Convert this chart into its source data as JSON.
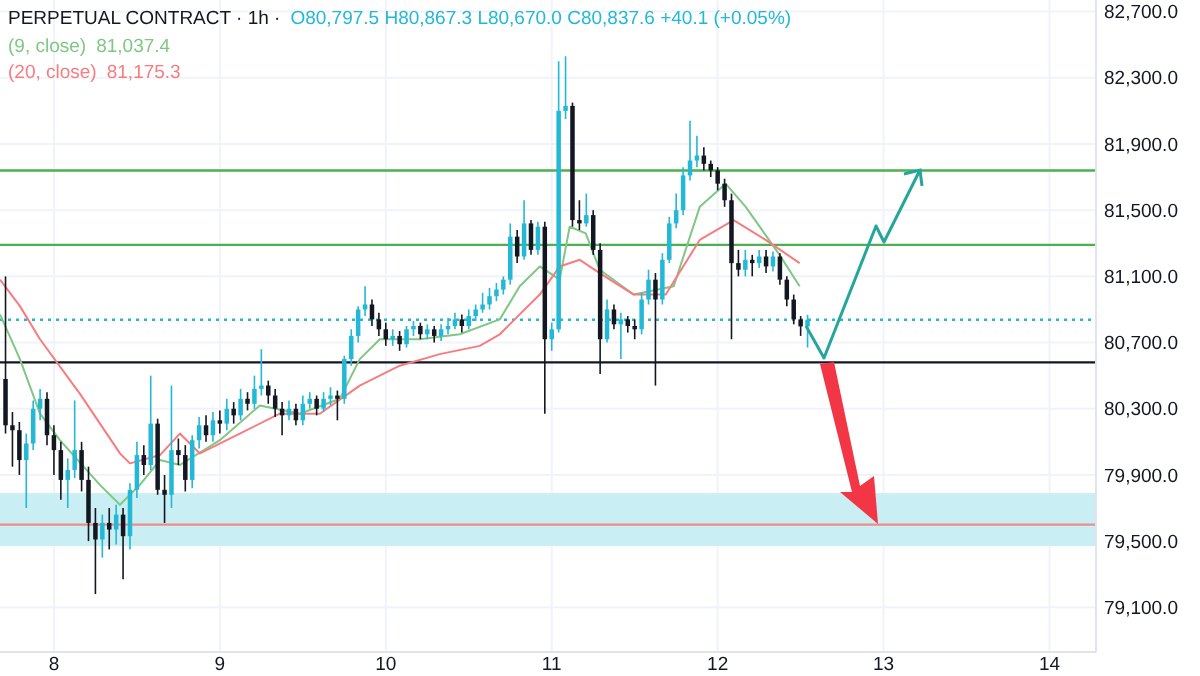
{
  "chart_data": {
    "type": "candlestick",
    "title": "PERPETUAL CONTRACT · 1h ·",
    "annotations": [
      "O80,797.5 H80,867.3 L80,670.0 C80,837.6 +40.1 (+0.05%)",
      "81,037.4",
      "81,175.3"
    ],
    "colors": [
      "#131722",
      "#131722",
      "#131722",
      "#22b8d6",
      "#22b8d6",
      "#22b8d6",
      "#131722",
      "#131722",
      "#131722",
      "#22b8d6",
      "#22b8d6",
      "#131722",
      "#131722",
      "#131722",
      "#22b8d6",
      "#131722",
      "#22b8d6",
      "#131722",
      "#22b8d6",
      "#22b8d6",
      "#131722",
      "#22b8d6",
      "#131722",
      "#131722",
      "#22b8d6",
      "#131722",
      "#131722",
      "#22b8d6",
      "#22b8d6",
      "#131722",
      "#22b8d6",
      "#131722",
      "#22b8d6",
      "#131722",
      "#22b8d6",
      "#131722",
      "#22b8d6",
      "#22b8d6",
      "#131722",
      "#131722",
      "#131722",
      "#22b8d6",
      "#131722",
      "#22b8d6",
      "#22b8d6",
      "#131722",
      "#22b8d6",
      "#22b8d6",
      "#131722",
      "#22b8d6",
      "#22b8d6",
      "#22b8d6",
      "#22b8d6",
      "#131722",
      "#131722",
      "#131722",
      "#22b8d6",
      "#131722",
      "#22b8d6",
      "#22b8d6",
      "#131722",
      "#22b8d6",
      "#131722",
      "#22b8d6",
      "#22b8d6",
      "#22b8d6",
      "#131722",
      "#22b8d6",
      "#22b8d6",
      "#22b8d6",
      "#22b8d6",
      "#22b8d6",
      "#22b8d6",
      "#22b8d6",
      "#131722",
      "#22b8d6",
      "#131722",
      "#22b8d6",
      "#131722",
      "#22b8d6",
      "#22b8d6",
      "#22b8d6",
      "#131722",
      "#131722",
      "#22b8d6",
      "#131722",
      "#131722",
      "#22b8d6",
      "#131722",
      "#22b8d6",
      "#131722",
      "#131722",
      "#22b8d6",
      "#22b8d6",
      "#131722",
      "#22b8d6",
      "#22b8d6",
      "#22b8d6",
      "#22b8d6",
      "#22b8d6",
      "#22b8d6",
      "#131722",
      "#131722",
      "#131722",
      "#131722",
      "#131722",
      "#131722",
      "#22b8d6",
      "#131722",
      "#22b8d6",
      "#131722",
      "#22b8d6",
      "#131722",
      "#131722",
      "#131722",
      "#131722",
      "#22b8d6"
    ],
    "x": [
      7.7083,
      7.75,
      7.7917,
      7.8333,
      7.875,
      7.9167,
      7.9583,
      8,
      8.0417,
      8.0833,
      8.125,
      8.1667,
      8.2083,
      8.25,
      8.2917,
      8.3333,
      8.375,
      8.4167,
      8.4583,
      8.5,
      8.5417,
      8.5833,
      8.625,
      8.6667,
      8.7083,
      8.75,
      8.7917,
      8.8333,
      8.875,
      8.9167,
      8.9583,
      9,
      9.0417,
      9.0833,
      9.125,
      9.1667,
      9.2083,
      9.25,
      9.2917,
      9.3333,
      9.375,
      9.4167,
      9.4583,
      9.5,
      9.5417,
      9.5833,
      9.625,
      9.6667,
      9.7083,
      9.75,
      9.7917,
      9.8333,
      9.875,
      9.9167,
      9.9583,
      10,
      10.0417,
      10.0833,
      10.125,
      10.1667,
      10.2083,
      10.25,
      10.2917,
      10.3333,
      10.375,
      10.4167,
      10.4583,
      10.5,
      10.5417,
      10.5833,
      10.625,
      10.6667,
      10.7083,
      10.75,
      10.7917,
      10.8333,
      10.875,
      10.9167,
      10.9583,
      11,
      11.0417,
      11.0833,
      11.125,
      11.1667,
      11.2083,
      11.25,
      11.2917,
      11.3333,
      11.375,
      11.4167,
      11.4583,
      11.5,
      11.5417,
      11.5833,
      11.625,
      11.6667,
      11.7083,
      11.75,
      11.7917,
      11.8333,
      11.875,
      11.9167,
      11.9583,
      12,
      12.0417,
      12.0833,
      12.125,
      12.1667,
      12.2083,
      12.25,
      12.2917,
      12.3333,
      12.375,
      12.4167,
      12.4583,
      12.5,
      12.5417
    ],
    "ohlc": [
      [
        80480,
        81100,
        80150,
        80200
      ],
      [
        80200,
        80280,
        79950,
        80170
      ],
      [
        80170,
        80220,
        79900,
        79990
      ],
      [
        79990,
        80150,
        79700,
        80090
      ],
      [
        80090,
        80350,
        80050,
        80300
      ],
      [
        80300,
        80420,
        80230,
        80360
      ],
      [
        80360,
        80400,
        80080,
        80140
      ],
      [
        80140,
        80200,
        79900,
        80050
      ],
      [
        80050,
        80100,
        79750,
        79870
      ],
      [
        79870,
        80000,
        79700,
        79930
      ],
      [
        79930,
        80350,
        79880,
        80050
      ],
      [
        80050,
        80100,
        79800,
        79870
      ],
      [
        79870,
        79950,
        79500,
        79610
      ],
      [
        79610,
        79700,
        79180,
        79510
      ],
      [
        79510,
        79660,
        79400,
        79610
      ],
      [
        79610,
        79700,
        79450,
        79570
      ],
      [
        79570,
        79720,
        79480,
        79660
      ],
      [
        79660,
        79700,
        79270,
        79530
      ],
      [
        79530,
        79850,
        79450,
        79810
      ],
      [
        79810,
        80100,
        79760,
        80020
      ],
      [
        80020,
        80080,
        79900,
        79960
      ],
      [
        79960,
        80500,
        79930,
        80210
      ],
      [
        80210,
        80240,
        79780,
        79810
      ],
      [
        79810,
        79900,
        79610,
        79780
      ],
      [
        79780,
        80440,
        79700,
        80050
      ],
      [
        80050,
        80120,
        79960,
        80020
      ],
      [
        80020,
        80080,
        79800,
        79870
      ],
      [
        79870,
        80140,
        79820,
        80110
      ],
      [
        80110,
        80250,
        80060,
        80200
      ],
      [
        80200,
        80260,
        80100,
        80140
      ],
      [
        80140,
        80280,
        80100,
        80230
      ],
      [
        80230,
        80290,
        80150,
        80210
      ],
      [
        80210,
        80360,
        80170,
        80300
      ],
      [
        80300,
        80340,
        80210,
        80260
      ],
      [
        80260,
        80420,
        80230,
        80360
      ],
      [
        80360,
        80400,
        80290,
        80330
      ],
      [
        80330,
        80500,
        80300,
        80420
      ],
      [
        80420,
        80660,
        80380,
        80440
      ],
      [
        80440,
        80470,
        80330,
        80380
      ],
      [
        80380,
        80420,
        80250,
        80300
      ],
      [
        80300,
        80340,
        80140,
        80260
      ],
      [
        80260,
        80350,
        80230,
        80300
      ],
      [
        80300,
        80330,
        80200,
        80230
      ],
      [
        80230,
        80380,
        80200,
        80330
      ],
      [
        80330,
        80400,
        80300,
        80360
      ],
      [
        80360,
        80380,
        80260,
        80300
      ],
      [
        80300,
        80400,
        80280,
        80360
      ],
      [
        80360,
        80430,
        80320,
        80380
      ],
      [
        80380,
        80410,
        80230,
        80360
      ],
      [
        80360,
        80620,
        80330,
        80600
      ],
      [
        80600,
        80780,
        80560,
        80740
      ],
      [
        80740,
        80920,
        80700,
        80900
      ],
      [
        80900,
        81040,
        80860,
        80930
      ],
      [
        80930,
        80960,
        80800,
        80840
      ],
      [
        80840,
        80880,
        80740,
        80780
      ],
      [
        80780,
        80820,
        80680,
        80720
      ],
      [
        80720,
        80780,
        80680,
        80740
      ],
      [
        80740,
        80770,
        80650,
        80690
      ],
      [
        80690,
        80800,
        80670,
        80780
      ],
      [
        80780,
        80830,
        80740,
        80800
      ],
      [
        80800,
        80820,
        80720,
        80750
      ],
      [
        80750,
        80810,
        80720,
        80780
      ],
      [
        80780,
        80800,
        80700,
        80740
      ],
      [
        80740,
        80810,
        80710,
        80780
      ],
      [
        80780,
        80850,
        80750,
        80800
      ],
      [
        80800,
        80880,
        80780,
        80840
      ],
      [
        80840,
        80870,
        80760,
        80800
      ],
      [
        80800,
        80900,
        80780,
        80860
      ],
      [
        80860,
        80930,
        80830,
        80900
      ],
      [
        80900,
        81000,
        80880,
        80930
      ],
      [
        80930,
        81030,
        80900,
        80980
      ],
      [
        80980,
        81060,
        80950,
        81020
      ],
      [
        81020,
        81100,
        80990,
        81080
      ],
      [
        81080,
        81420,
        81050,
        81340
      ],
      [
        81340,
        81380,
        81180,
        81220
      ],
      [
        81220,
        81560,
        81200,
        81420
      ],
      [
        81420,
        81440,
        81230,
        81260
      ],
      [
        81260,
        81430,
        81230,
        81400
      ],
      [
        81400,
        81430,
        80270,
        80720
      ],
      [
        80720,
        80820,
        80650,
        80780
      ],
      [
        80780,
        82400,
        80760,
        82100
      ],
      [
        82100,
        82430,
        82050,
        82130
      ],
      [
        82130,
        82150,
        81400,
        81440
      ],
      [
        81440,
        81560,
        81380,
        81420
      ],
      [
        81420,
        81600,
        81400,
        81470
      ],
      [
        81470,
        81500,
        81230,
        81260
      ],
      [
        81260,
        81300,
        80510,
        80720
      ],
      [
        80720,
        80960,
        80700,
        80900
      ],
      [
        80900,
        80930,
        80780,
        80810
      ],
      [
        80810,
        80880,
        80600,
        80840
      ],
      [
        80840,
        80860,
        80760,
        80800
      ],
      [
        80800,
        80840,
        80720,
        80780
      ],
      [
        80780,
        81000,
        80750,
        80960
      ],
      [
        80960,
        81140,
        80930,
        81080
      ],
      [
        81080,
        81120,
        80440,
        80960
      ],
      [
        80960,
        81240,
        80930,
        81200
      ],
      [
        81200,
        81460,
        81180,
        81420
      ],
      [
        81420,
        81600,
        81390,
        81500
      ],
      [
        81500,
        81760,
        81470,
        81710
      ],
      [
        81710,
        82040,
        81680,
        81800
      ],
      [
        81800,
        81950,
        81760,
        81830
      ],
      [
        81830,
        81880,
        81740,
        81780
      ],
      [
        81780,
        81800,
        81700,
        81740
      ],
      [
        81740,
        81760,
        81620,
        81660
      ],
      [
        81660,
        81690,
        81520,
        81560
      ],
      [
        81560,
        81600,
        80720,
        81180
      ],
      [
        81180,
        81260,
        81100,
        81140
      ],
      [
        81140,
        81260,
        81100,
        81200
      ],
      [
        81200,
        81230,
        81100,
        81180
      ],
      [
        81180,
        81260,
        81150,
        81220
      ],
      [
        81220,
        81260,
        81120,
        81160
      ],
      [
        81160,
        81250,
        81130,
        81220
      ],
      [
        81220,
        81240,
        81050,
        81080
      ],
      [
        81080,
        81100,
        80920,
        80960
      ],
      [
        80960,
        80990,
        80810,
        80840
      ],
      [
        80840,
        80860,
        80740,
        80797.5
      ],
      [
        80797.5,
        80867.3,
        80670.0,
        80837.6
      ]
    ],
    "series": [
      {
        "name": "(9, close)",
        "type": "line",
        "color": "#81c784",
        "x": [
          7.675,
          7.795,
          7.916,
          8.036,
          8.277,
          8.398,
          8.518,
          8.639,
          8.759,
          9.0,
          9.241,
          9.482,
          9.723,
          9.843,
          9.964,
          10.205,
          10.446,
          10.687,
          10.807,
          10.928,
          11.048,
          11.108,
          11.205,
          11.289,
          11.494,
          11.735,
          11.892,
          12.048,
          12.169,
          12.373,
          12.494
        ],
        "values": [
          80870,
          80600,
          80270,
          80110,
          79840,
          79720,
          79840,
          79990,
          79960,
          80110,
          80320,
          80270,
          80360,
          80600,
          80720,
          80720,
          80750,
          80840,
          81040,
          81160,
          81080,
          81400,
          81360,
          81140,
          80990,
          81040,
          81520,
          81660,
          81520,
          81230,
          81040
        ]
      },
      {
        "name": "(20, close)",
        "type": "line",
        "color": "#f77c80",
        "x": [
          7.675,
          7.795,
          7.916,
          8.157,
          8.398,
          8.458,
          8.639,
          8.759,
          8.88,
          9.12,
          9.361,
          9.602,
          9.843,
          10.084,
          10.325,
          10.566,
          10.687,
          10.807,
          10.928,
          11.048,
          11.169,
          11.289,
          11.494,
          11.687,
          11.892,
          12.096,
          12.289,
          12.494
        ],
        "values": [
          81080,
          80920,
          80720,
          80390,
          80030,
          79970,
          80020,
          80150,
          80030,
          80150,
          80270,
          80270,
          80440,
          80560,
          80630,
          80680,
          80750,
          80870,
          80990,
          81160,
          81200,
          81120,
          80990,
          80990,
          81320,
          81440,
          81320,
          81180
        ]
      }
    ],
    "xlim": [
      7.675,
      14.28
    ],
    "xticks": [
      8,
      9,
      10,
      11,
      12,
      13,
      14
    ],
    "ylim": [
      78830,
      82770
    ],
    "yticks": [
      {
        "value": 79100,
        "label": "79,100.0"
      },
      {
        "value": 79500,
        "label": "79,500.0"
      },
      {
        "value": 79900,
        "label": "79,900.0"
      },
      {
        "value": 80300,
        "label": "80,300.0"
      },
      {
        "value": 80700,
        "label": "80,700.0"
      },
      {
        "value": 81100,
        "label": "81,100.0"
      },
      {
        "value": 81500,
        "label": "81,500.0"
      },
      {
        "value": 81900,
        "label": "81,900.0"
      },
      {
        "value": 82300,
        "label": "82,300.0"
      },
      {
        "value": 82700,
        "label": "82,700.0"
      }
    ],
    "grid": true,
    "legend": "top left",
    "ref_lines": [
      {
        "axis": "y",
        "value": 80580,
        "color": "#131722",
        "line_style": "solid"
      },
      {
        "axis": "y",
        "value": 81740,
        "color": "#4caf50",
        "line_style": "solid"
      },
      {
        "axis": "y",
        "value": 81290,
        "color": "#4caf50",
        "line_style": "solid"
      },
      {
        "axis": "y",
        "value": 79600,
        "color": "#f28b8b",
        "line_style": "solid"
      },
      {
        "axis": "y",
        "value": 80837.6,
        "color": "#22b8d6",
        "line_style": "dotted"
      }
    ],
    "bands": [
      {
        "axis": "y",
        "from": 79470,
        "to": 79790,
        "color": "#c9eef3"
      }
    ]
  }
}
